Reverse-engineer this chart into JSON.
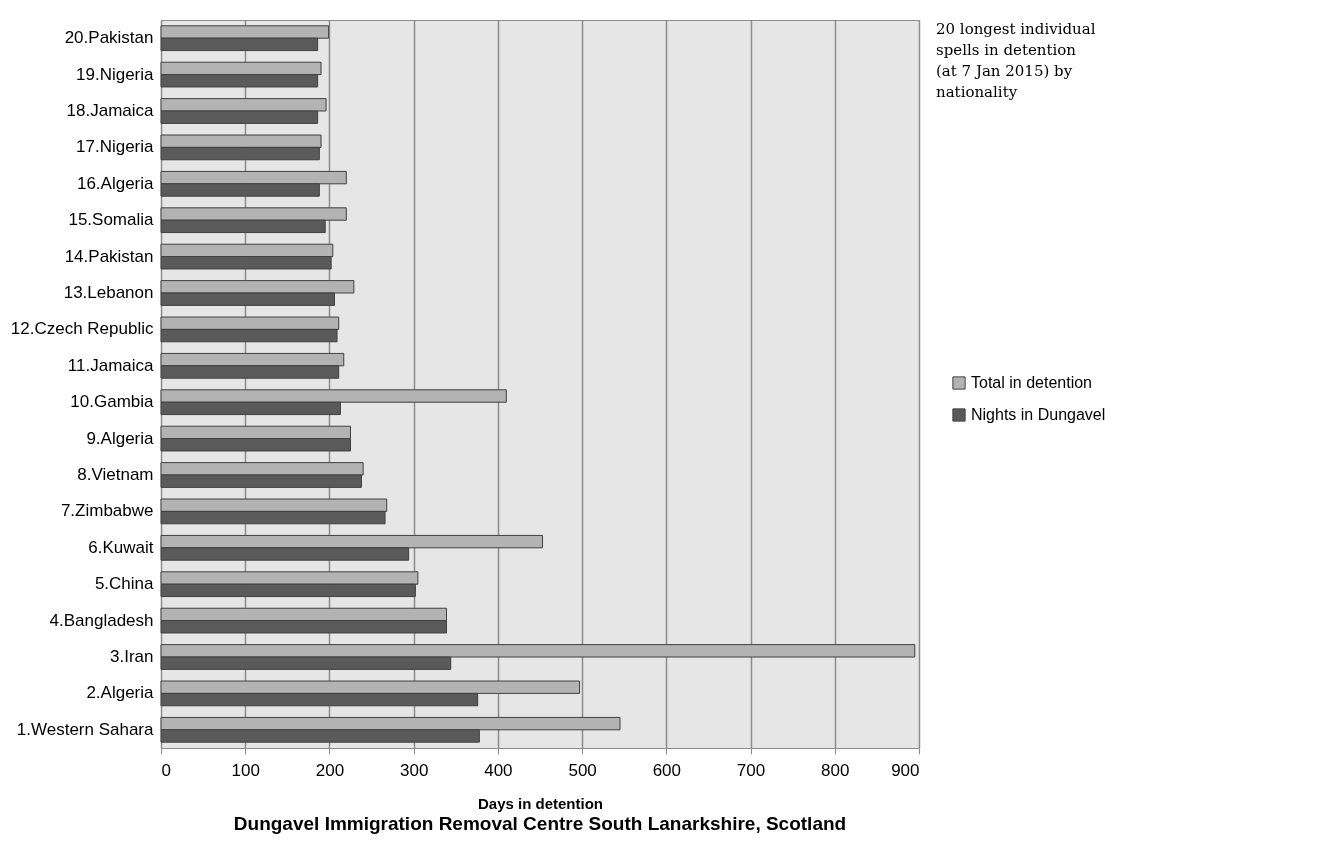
{
  "chart_data": {
    "type": "bar",
    "orientation": "horizontal",
    "title": "Dungavel Immigration Removal Centre  South Lanarkshire, Scotland",
    "xlabel": "Days in detention",
    "categories": [
      "20.Pakistan",
      "19.Nigeria",
      "18.Jamaica",
      "17.Nigeria",
      "16.Algeria",
      "15.Somalia",
      "14.Pakistan",
      "13.Lebanon",
      "12.Czech Republic",
      "11.Jamaica",
      "10.Gambia",
      "9.Algeria",
      "8.Vietnam",
      "7.Zimbabwe",
      "6.Kuwait",
      "5.China",
      "4.Bangladesh",
      "3.Iran",
      "2.Algeria",
      "1.Western Sahara"
    ],
    "series": [
      {
        "name": "Total in detention",
        "color": "#b3b3b3",
        "values": [
          199,
          190,
          196,
          190,
          220,
          220,
          204,
          229,
          211,
          217,
          410,
          225,
          240,
          268,
          453,
          305,
          339,
          895,
          497,
          545
        ]
      },
      {
        "name": "Nights in Dungavel",
        "color": "#5a5a5a",
        "values": [
          186,
          186,
          186,
          188,
          188,
          195,
          202,
          206,
          209,
          211,
          213,
          225,
          238,
          266,
          294,
          302,
          339,
          344,
          376,
          378
        ]
      }
    ],
    "xlim": [
      0,
      900
    ],
    "xticks": [
      0,
      100,
      200,
      300,
      400,
      500,
      600,
      700,
      800,
      900
    ],
    "grid": "x",
    "legend": "right",
    "annotations": [
      "20 longest individual\nspells in detention\n(at 7 Jan 2015)  by\nnationality"
    ]
  }
}
